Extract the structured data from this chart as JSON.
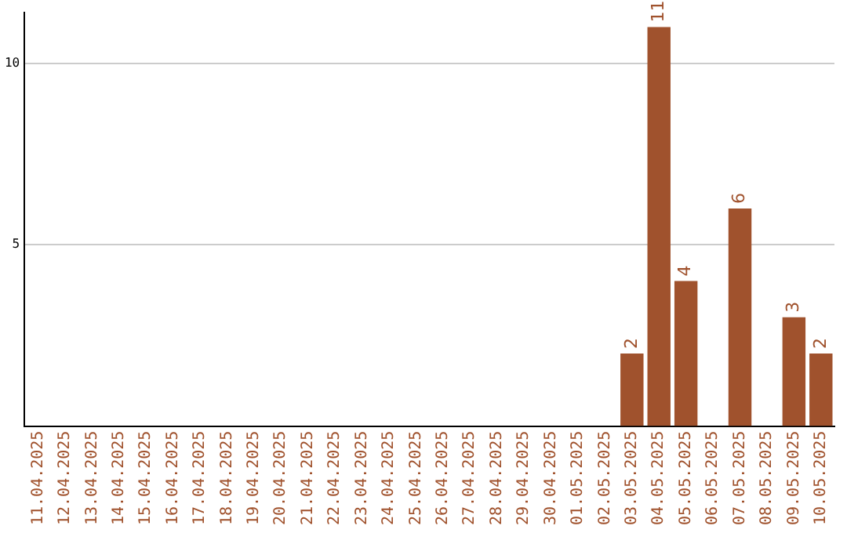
{
  "chart_data": {
    "type": "bar",
    "categories": [
      "11.04.2025",
      "12.04.2025",
      "13.04.2025",
      "14.04.2025",
      "15.04.2025",
      "16.04.2025",
      "17.04.2025",
      "18.04.2025",
      "19.04.2025",
      "20.04.2025",
      "21.04.2025",
      "22.04.2025",
      "23.04.2025",
      "24.04.2025",
      "25.04.2025",
      "26.04.2025",
      "27.04.2025",
      "28.04.2025",
      "29.04.2025",
      "30.04.2025",
      "01.05.2025",
      "02.05.2025",
      "03.05.2025",
      "04.05.2025",
      "05.05.2025",
      "06.05.2025",
      "07.05.2025",
      "08.05.2025",
      "09.05.2025",
      "10.05.2025"
    ],
    "values": [
      0,
      0,
      0,
      0,
      0,
      0,
      0,
      0,
      0,
      0,
      0,
      0,
      0,
      0,
      0,
      0,
      0,
      0,
      0,
      0,
      0,
      0,
      2,
      11,
      4,
      0,
      6,
      0,
      3,
      2
    ],
    "value_labels": [
      null,
      null,
      null,
      null,
      null,
      null,
      null,
      null,
      null,
      null,
      null,
      null,
      null,
      null,
      null,
      null,
      null,
      null,
      null,
      null,
      null,
      null,
      "2",
      "11",
      "4",
      null,
      "6",
      null,
      "3",
      "2"
    ],
    "color": "#a0522d",
    "ylim": [
      0,
      11.4
    ],
    "yticks": [
      5,
      10
    ],
    "grid": "y",
    "legend": false
  }
}
